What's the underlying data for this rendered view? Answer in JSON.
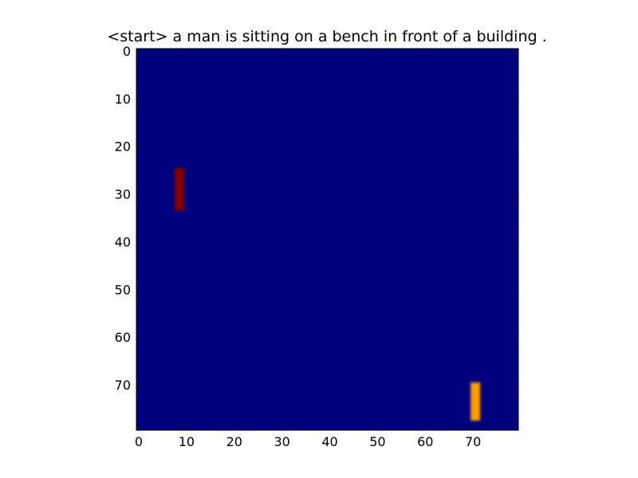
{
  "chart_data": {
    "type": "heatmap",
    "title": "<start> a man is sitting on a bench in front of a building .",
    "xlabel": "",
    "ylabel": "",
    "xlim": [
      -0.5,
      79.5
    ],
    "ylim": [
      79.5,
      -0.5
    ],
    "grid": false,
    "colormap": "jet",
    "background_value": 0.0,
    "x_ticks": [
      0,
      10,
      20,
      30,
      40,
      50,
      60,
      70
    ],
    "y_ticks": [
      0,
      10,
      20,
      30,
      40,
      50,
      60,
      70
    ],
    "regions": [
      {
        "label": "",
        "x_range": [
          8,
          9
        ],
        "y_range": [
          25,
          33
        ],
        "value": 1.0
      },
      {
        "label": "",
        "x_range": [
          70,
          71
        ],
        "y_range": [
          70,
          77
        ],
        "value": 0.72
      }
    ],
    "colors": {
      "background": "#00007f",
      "axes_edge": "#000000"
    }
  }
}
